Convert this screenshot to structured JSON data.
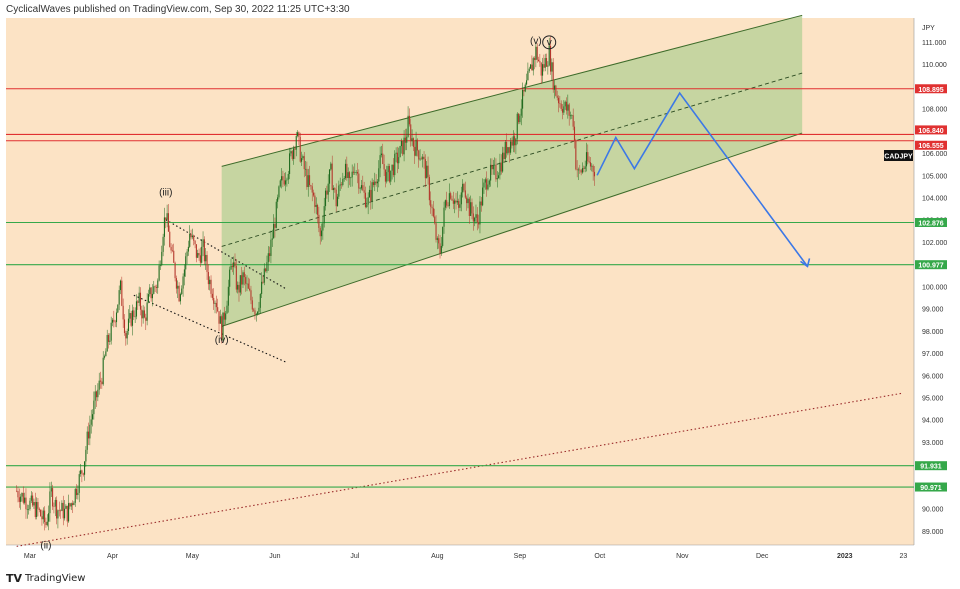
{
  "header": {
    "publisher": "CyclicalWaves published on TradingView.com, Sep 30, 2022 11:25 UTC+3:30"
  },
  "footer": {
    "brand": "TradingView"
  },
  "colors": {
    "background": "#fce3c5",
    "channel_fill": "#bcd29a",
    "candle_up": "#1f6b1f",
    "candle_down": "#b4362b",
    "red_level": "#e03131",
    "green_level": "#35a84a",
    "projection": "#3c78e6"
  },
  "chart_data": {
    "type": "candlestick",
    "symbol": "CADJPY",
    "currency": "JPY",
    "ylim": [
      88.0,
      112.0
    ],
    "yticks": [
      89.0,
      90.0,
      91.0,
      92.0,
      93.0,
      94.0,
      95.0,
      96.0,
      97.0,
      98.0,
      99.0,
      100.0,
      101.0,
      102.0,
      103.0,
      104.0,
      105.0,
      106.0,
      107.0,
      108.0,
      109.0,
      110.0,
      111.0
    ],
    "xticks": [
      "Mar",
      "Apr",
      "May",
      "Jun",
      "Jul",
      "Aug",
      "Sep",
      "Oct",
      "Nov",
      "Dec",
      "2023",
      "23"
    ],
    "horizontal_levels": [
      {
        "price": 108.895,
        "label": "108.895",
        "color": "red"
      },
      {
        "price": 106.84,
        "label": "106.840",
        "color": "red"
      },
      {
        "price": 106.555,
        "label": "106.555",
        "color": "red"
      },
      {
        "price": 102.876,
        "label": "102.876",
        "color": "green"
      },
      {
        "price": 100.977,
        "label": "100.977",
        "color": "green"
      },
      {
        "price": 91.931,
        "label": "91.931",
        "color": "green"
      },
      {
        "price": 90.971,
        "label": "90.971",
        "color": "green"
      }
    ],
    "wave_labels": [
      {
        "label": "(ii)",
        "date": "2022-03-07",
        "price": 88.2
      },
      {
        "label": "(iii)",
        "date": "2022-04-21",
        "price": 104.1
      },
      {
        "label": "(iv)",
        "date": "2022-05-12",
        "price": 97.45
      },
      {
        "label": "(v)",
        "date": "2022-09-07",
        "price": 110.9
      },
      {
        "label": "v",
        "date": "2022-09-12",
        "price": 110.85
      }
    ],
    "price_path": [
      [
        "2022-02-24",
        90.8
      ],
      [
        "2022-03-01",
        90.2
      ],
      [
        "2022-03-04",
        89.9
      ],
      [
        "2022-03-07",
        89.3
      ],
      [
        "2022-03-09",
        90.7
      ],
      [
        "2022-03-11",
        90.0
      ],
      [
        "2022-03-15",
        89.8
      ],
      [
        "2022-03-17",
        90.4
      ],
      [
        "2022-03-21",
        91.9
      ],
      [
        "2022-03-23",
        93.5
      ],
      [
        "2022-03-25",
        94.6
      ],
      [
        "2022-03-28",
        96.0
      ],
      [
        "2022-03-30",
        97.4
      ],
      [
        "2022-04-01",
        98.2
      ],
      [
        "2022-04-04",
        99.9
      ],
      [
        "2022-04-06",
        97.8
      ],
      [
        "2022-04-08",
        98.6
      ],
      [
        "2022-04-11",
        99.3
      ],
      [
        "2022-04-13",
        98.5
      ],
      [
        "2022-04-15",
        99.6
      ],
      [
        "2022-04-18",
        100.2
      ],
      [
        "2022-04-20",
        102.6
      ],
      [
        "2022-04-21",
        103.3
      ],
      [
        "2022-04-23",
        101.5
      ],
      [
        "2022-04-26",
        99.7
      ],
      [
        "2022-04-28",
        100.8
      ],
      [
        "2022-04-30",
        102.4
      ],
      [
        "2022-05-03",
        101.3
      ],
      [
        "2022-05-05",
        101.7
      ],
      [
        "2022-05-07",
        100.4
      ],
      [
        "2022-05-10",
        99.3
      ],
      [
        "2022-05-12",
        98.0
      ],
      [
        "2022-05-14",
        99.5
      ],
      [
        "2022-05-16",
        101.2
      ],
      [
        "2022-05-18",
        99.8
      ],
      [
        "2022-05-20",
        100.4
      ],
      [
        "2022-05-23",
        99.4
      ],
      [
        "2022-05-25",
        98.9
      ],
      [
        "2022-05-27",
        99.9
      ],
      [
        "2022-05-30",
        101.5
      ],
      [
        "2022-06-01",
        103.0
      ],
      [
        "2022-06-03",
        104.5
      ],
      [
        "2022-06-06",
        105.4
      ],
      [
        "2022-06-08",
        106.3
      ],
      [
        "2022-06-09",
        106.9
      ],
      [
        "2022-06-11",
        105.7
      ],
      [
        "2022-06-14",
        104.4
      ],
      [
        "2022-06-16",
        103.9
      ],
      [
        "2022-06-18",
        102.2
      ],
      [
        "2022-06-20",
        104.2
      ],
      [
        "2022-06-22",
        105.1
      ],
      [
        "2022-06-24",
        103.8
      ],
      [
        "2022-06-27",
        105.3
      ],
      [
        "2022-06-29",
        104.5
      ],
      [
        "2022-07-01",
        105.5
      ],
      [
        "2022-07-04",
        104.2
      ],
      [
        "2022-07-06",
        103.8
      ],
      [
        "2022-07-08",
        104.6
      ],
      [
        "2022-07-11",
        105.7
      ],
      [
        "2022-07-13",
        104.9
      ],
      [
        "2022-07-15",
        105.3
      ],
      [
        "2022-07-18",
        106.0
      ],
      [
        "2022-07-20",
        106.6
      ],
      [
        "2022-07-21",
        107.3
      ],
      [
        "2022-07-23",
        106.4
      ],
      [
        "2022-07-26",
        105.9
      ],
      [
        "2022-07-28",
        105.0
      ],
      [
        "2022-07-30",
        103.4
      ],
      [
        "2022-08-01",
        101.8
      ],
      [
        "2022-08-02",
        101.6
      ],
      [
        "2022-08-04",
        103.8
      ],
      [
        "2022-08-06",
        104.3
      ],
      [
        "2022-08-09",
        103.4
      ],
      [
        "2022-08-11",
        104.7
      ],
      [
        "2022-08-13",
        103.5
      ],
      [
        "2022-08-16",
        102.9
      ],
      [
        "2022-08-18",
        104.2
      ],
      [
        "2022-08-20",
        105.0
      ],
      [
        "2022-08-23",
        105.1
      ],
      [
        "2022-08-25",
        105.6
      ],
      [
        "2022-08-27",
        106.3
      ],
      [
        "2022-08-30",
        106.7
      ],
      [
        "2022-09-01",
        108.0
      ],
      [
        "2022-09-03",
        108.8
      ],
      [
        "2022-09-06",
        110.2
      ],
      [
        "2022-09-07",
        110.6
      ],
      [
        "2022-09-09",
        109.7
      ],
      [
        "2022-09-12",
        110.5
      ],
      [
        "2022-09-14",
        108.9
      ],
      [
        "2022-09-16",
        108.3
      ],
      [
        "2022-09-19",
        107.9
      ],
      [
        "2022-09-21",
        107.5
      ],
      [
        "2022-09-22",
        105.6
      ],
      [
        "2022-09-23",
        105.0
      ],
      [
        "2022-09-26",
        105.6
      ],
      [
        "2022-09-28",
        105.4
      ],
      [
        "2022-09-29",
        105.3
      ]
    ],
    "projection_path": [
      [
        "2022-09-30",
        105.0
      ],
      [
        "2022-10-07",
        106.7
      ],
      [
        "2022-10-14",
        105.3
      ],
      [
        "2022-10-31",
        108.7
      ],
      [
        "2022-12-18",
        100.9
      ]
    ],
    "channel": {
      "lower": [
        [
          "2022-05-12",
          98.2
        ],
        [
          "2022-12-16",
          106.9
        ]
      ],
      "upper": [
        [
          "2022-05-12",
          105.4
        ],
        [
          "2022-12-16",
          112.2
        ]
      ],
      "mid": [
        [
          "2022-05-12",
          101.8
        ],
        [
          "2022-12-16",
          109.6
        ]
      ]
    },
    "triangle_lines": [
      {
        "from": [
          "2022-04-21",
          103.0
        ],
        "to": [
          "2022-06-05",
          99.9
        ],
        "style": "dotted"
      },
      {
        "from": [
          "2022-04-09",
          99.6
        ],
        "to": [
          "2022-06-05",
          96.6
        ],
        "style": "dotted"
      }
    ],
    "long_trendline": {
      "from": [
        "2022-02-24",
        88.3
      ],
      "to": [
        "2023-01-23",
        95.2
      ],
      "style": "dotted"
    }
  }
}
